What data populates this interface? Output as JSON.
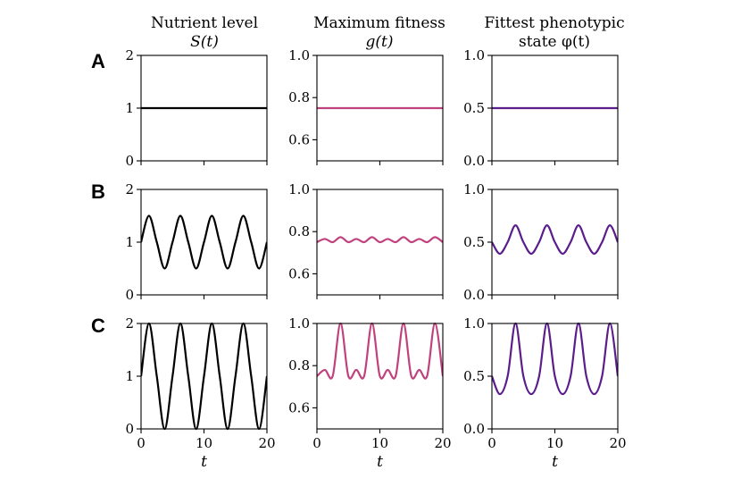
{
  "figure": {
    "row_labels": [
      "A",
      "B",
      "C"
    ],
    "column_titles": [
      {
        "line1": "Nutrient level",
        "line2": "S(t)"
      },
      {
        "line1": "Maximum fitness",
        "line2": "g(t)"
      },
      {
        "line1": "Fittest phenotypic",
        "line2": "state φ(t)"
      }
    ],
    "xlabel": "t",
    "colors": {
      "nutrient": "#000000",
      "fitness": "#c0417d",
      "phenotype": "#5b1c8c",
      "axis": "#000000",
      "background": "#ffffff"
    }
  },
  "chart_data": [
    {
      "type": "line",
      "row": "A",
      "column": "Nutrient level S(t)",
      "xlim": [
        0,
        20
      ],
      "ylim": [
        0,
        2
      ],
      "xticks": [
        0,
        10,
        20
      ],
      "xticklabels": [
        "",
        "",
        ""
      ],
      "yticks": [
        0,
        1,
        2
      ],
      "yticklabels": [
        "0",
        "1",
        "2"
      ],
      "x": [
        0,
        20
      ],
      "y": [
        1,
        1
      ]
    },
    {
      "type": "line",
      "row": "A",
      "column": "Maximum fitness g(t)",
      "xlim": [
        0,
        20
      ],
      "ylim": [
        0.5,
        1.0
      ],
      "xticks": [
        0,
        10,
        20
      ],
      "xticklabels": [
        "",
        "",
        ""
      ],
      "yticks": [
        0.6,
        0.8,
        1.0
      ],
      "yticklabels": [
        "0.6",
        "0.8",
        "1.0"
      ],
      "x": [
        0,
        20
      ],
      "y": [
        0.75,
        0.75
      ]
    },
    {
      "type": "line",
      "row": "A",
      "column": "Fittest phenotypic state φ(t)",
      "xlim": [
        0,
        20
      ],
      "ylim": [
        0,
        1.0
      ],
      "xticks": [
        0,
        10,
        20
      ],
      "xticklabels": [
        "",
        "",
        ""
      ],
      "yticks": [
        0.0,
        0.5,
        1.0
      ],
      "yticklabels": [
        "0.0",
        "0.5",
        "1.0"
      ],
      "x": [
        0,
        20
      ],
      "y": [
        0.5,
        0.5
      ]
    },
    {
      "type": "line",
      "row": "B",
      "column": "Nutrient level S(t)",
      "xlim": [
        0,
        20
      ],
      "ylim": [
        0,
        2
      ],
      "xticks": [
        0,
        10,
        20
      ],
      "xticklabels": [
        "",
        "",
        ""
      ],
      "yticks": [
        0,
        1,
        2
      ],
      "yticklabels": [
        "0",
        "1",
        "2"
      ],
      "x": [
        0,
        1.25,
        2.5,
        3.75,
        5,
        6.25,
        7.5,
        8.75,
        10,
        11.25,
        12.5,
        13.75,
        15,
        16.25,
        17.5,
        18.75,
        20
      ],
      "y": [
        1.0,
        1.5,
        1.0,
        0.5,
        1.0,
        1.5,
        1.0,
        0.5,
        1.0,
        1.5,
        1.0,
        0.5,
        1.0,
        1.5,
        1.0,
        0.5,
        1.0
      ]
    },
    {
      "type": "line",
      "row": "B",
      "column": "Maximum fitness g(t)",
      "xlim": [
        0,
        20
      ],
      "ylim": [
        0.5,
        1.0
      ],
      "xticks": [
        0,
        10,
        20
      ],
      "xticklabels": [
        "",
        "",
        ""
      ],
      "yticks": [
        0.6,
        0.8,
        1.0
      ],
      "yticklabels": [
        "0.6",
        "0.8",
        "1.0"
      ],
      "x": [
        0,
        1.25,
        2.5,
        3.75,
        5,
        6.25,
        7.5,
        8.75,
        10,
        11.25,
        12.5,
        13.75,
        15,
        16.25,
        17.5,
        18.75,
        20
      ],
      "y": [
        0.75,
        0.765,
        0.75,
        0.774,
        0.75,
        0.765,
        0.75,
        0.774,
        0.75,
        0.765,
        0.75,
        0.774,
        0.75,
        0.765,
        0.75,
        0.774,
        0.75
      ]
    },
    {
      "type": "line",
      "row": "B",
      "column": "Fittest phenotypic state φ(t)",
      "xlim": [
        0,
        20
      ],
      "ylim": [
        0,
        1.0
      ],
      "xticks": [
        0,
        10,
        20
      ],
      "xticklabels": [
        "",
        "",
        ""
      ],
      "yticks": [
        0.0,
        0.5,
        1.0
      ],
      "yticklabels": [
        "0.0",
        "0.5",
        "1.0"
      ],
      "x": [
        0,
        1.25,
        2.5,
        3.75,
        5,
        6.25,
        7.5,
        8.75,
        10,
        11.25,
        12.5,
        13.75,
        15,
        16.25,
        17.5,
        18.75,
        20
      ],
      "y": [
        0.5,
        0.39,
        0.5,
        0.66,
        0.5,
        0.39,
        0.5,
        0.66,
        0.5,
        0.39,
        0.5,
        0.66,
        0.5,
        0.39,
        0.5,
        0.66,
        0.5
      ]
    },
    {
      "type": "line",
      "row": "C",
      "column": "Nutrient level S(t)",
      "xlim": [
        0,
        20
      ],
      "ylim": [
        0,
        2
      ],
      "xticks": [
        0,
        10,
        20
      ],
      "xticklabels": [
        "0",
        "10",
        "20"
      ],
      "yticks": [
        0,
        1,
        2
      ],
      "yticklabels": [
        "0",
        "1",
        "2"
      ],
      "xlabel": "t",
      "x": [
        0,
        1.25,
        2.5,
        3.75,
        5,
        6.25,
        7.5,
        8.75,
        10,
        11.25,
        12.5,
        13.75,
        15,
        16.25,
        17.5,
        18.75,
        20
      ],
      "y": [
        1.0,
        2.0,
        1.0,
        0.0,
        1.0,
        2.0,
        1.0,
        0.0,
        1.0,
        2.0,
        1.0,
        0.0,
        1.0,
        2.0,
        1.0,
        0.0,
        1.0
      ]
    },
    {
      "type": "line",
      "row": "C",
      "column": "Maximum fitness g(t)",
      "xlim": [
        0,
        20
      ],
      "ylim": [
        0.5,
        1.0
      ],
      "xticks": [
        0,
        10,
        20
      ],
      "xticklabels": [
        "0",
        "10",
        "20"
      ],
      "yticks": [
        0.6,
        0.8,
        1.0
      ],
      "yticklabels": [
        "0.6",
        "0.8",
        "1.0"
      ],
      "xlabel": "t",
      "x": [
        0,
        1.25,
        2.5,
        3.75,
        5,
        6.25,
        7.5,
        8.75,
        10,
        11.25,
        12.5,
        13.75,
        15,
        16.25,
        17.5,
        18.75,
        20
      ],
      "y": [
        0.75,
        0.78,
        0.75,
        1.0,
        0.75,
        0.78,
        0.75,
        1.0,
        0.75,
        0.78,
        0.75,
        1.0,
        0.75,
        0.78,
        0.75,
        1.0,
        0.75
      ]
    },
    {
      "type": "line",
      "row": "C",
      "column": "Fittest phenotypic state φ(t)",
      "xlim": [
        0,
        20
      ],
      "ylim": [
        0,
        1.0
      ],
      "xticks": [
        0,
        10,
        20
      ],
      "xticklabels": [
        "0",
        "10",
        "20"
      ],
      "yticks": [
        0.0,
        0.5,
        1.0
      ],
      "yticklabels": [
        "0.0",
        "0.5",
        "1.0"
      ],
      "xlabel": "t",
      "x": [
        0,
        1.25,
        2.5,
        3.75,
        5,
        6.25,
        7.5,
        8.75,
        10,
        11.25,
        12.5,
        13.75,
        15,
        16.25,
        17.5,
        18.75,
        20
      ],
      "y": [
        0.5,
        0.33,
        0.5,
        1.0,
        0.5,
        0.33,
        0.5,
        1.0,
        0.5,
        0.33,
        0.5,
        1.0,
        0.5,
        0.33,
        0.5,
        1.0,
        0.5
      ]
    }
  ]
}
